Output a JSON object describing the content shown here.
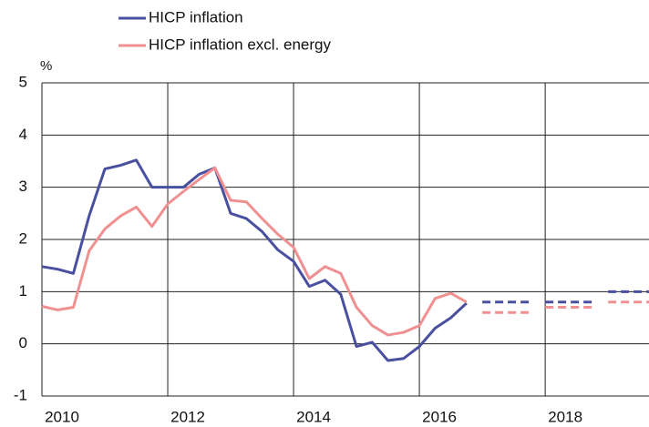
{
  "chart_data": {
    "type": "line",
    "y_label": "%",
    "x": [
      2010,
      2010.25,
      2010.5,
      2010.75,
      2011,
      2011.25,
      2011.5,
      2011.75,
      2012,
      2012.25,
      2012.5,
      2012.75,
      2013,
      2013.25,
      2013.5,
      2013.75,
      2014,
      2014.25,
      2014.5,
      2014.75,
      2015,
      2015.25,
      2015.5,
      2015.75,
      2016,
      2016.25,
      2016.5,
      2016.75
    ],
    "series": [
      {
        "name": "HICP inflation",
        "color": "#4a50a0",
        "values": [
          1.48,
          1.43,
          1.35,
          2.45,
          3.35,
          3.42,
          3.52,
          3.0,
          3.0,
          3.0,
          3.25,
          3.37,
          2.5,
          2.4,
          2.15,
          1.8,
          1.58,
          1.1,
          1.22,
          0.95,
          -0.05,
          0.03,
          -0.32,
          -0.28,
          -0.05,
          0.3,
          0.5,
          0.78
        ]
      },
      {
        "name": "HICP inflation excl. energy",
        "color": "#f09090",
        "values": [
          0.72,
          0.65,
          0.7,
          1.78,
          2.2,
          2.45,
          2.62,
          2.25,
          2.68,
          2.92,
          3.15,
          3.37,
          2.75,
          2.72,
          2.4,
          2.1,
          1.85,
          1.25,
          1.48,
          1.35,
          0.7,
          0.35,
          0.17,
          0.22,
          0.35,
          0.87,
          0.97,
          0.8
        ]
      }
    ],
    "projections": [
      {
        "color": "#4a50a0",
        "x": [
          2017,
          2018,
          2019
        ],
        "values": [
          0.8,
          0.8,
          1.0
        ]
      },
      {
        "color": "#f09090",
        "x": [
          2017,
          2018,
          2019
        ],
        "values": [
          0.6,
          0.7,
          0.8
        ]
      }
    ],
    "xlim": [
      2010,
      2019.65
    ],
    "xticks": [
      2010,
      2012,
      2014,
      2016,
      2018
    ],
    "ylim": [
      -1,
      5
    ],
    "yticks": [
      -1,
      0,
      1,
      2,
      3,
      4,
      5
    ],
    "grid": true
  }
}
